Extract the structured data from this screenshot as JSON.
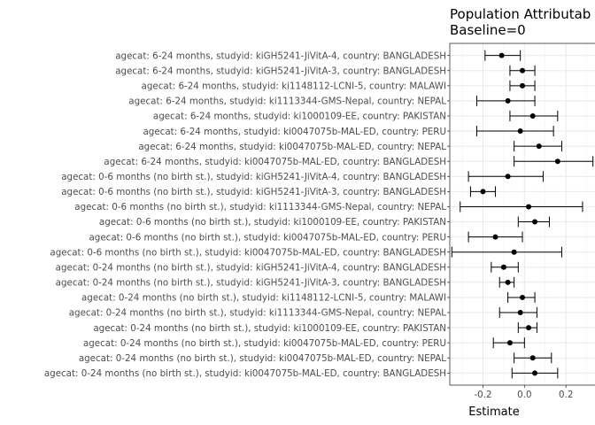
{
  "chart_data": {
    "type": "forest",
    "title": "Population Attributab",
    "subtitle": "Baseline=0",
    "xlabel": "Estimate",
    "ylabel": "",
    "xlim": [
      -0.36,
      0.34
    ],
    "x_ticks": [
      -0.2,
      0.0,
      0.2
    ],
    "x_tick_labels": [
      "-0.2",
      "0.0",
      "0.2"
    ],
    "grid": true,
    "legend": "none",
    "rows": [
      {
        "label": "agecat: 6-24 months, studyid: kiGH5241-JiVitA-4, country: BANGLADESH",
        "estimate": -0.11,
        "lower": -0.19,
        "upper": -0.02
      },
      {
        "label": "agecat: 6-24 months, studyid: kiGH5241-JiVitA-3, country: BANGLADESH",
        "estimate": -0.01,
        "lower": -0.07,
        "upper": 0.05
      },
      {
        "label": "agecat: 6-24 months, studyid: ki1148112-LCNI-5, country: MALAWI",
        "estimate": -0.01,
        "lower": -0.07,
        "upper": 0.05
      },
      {
        "label": "agecat: 6-24 months, studyid: ki1113344-GMS-Nepal, country: NEPAL",
        "estimate": -0.08,
        "lower": -0.23,
        "upper": 0.05
      },
      {
        "label": "agecat: 6-24 months, studyid: ki1000109-EE, country: PAKISTAN",
        "estimate": 0.04,
        "lower": -0.07,
        "upper": 0.16
      },
      {
        "label": "agecat: 6-24 months, studyid: ki0047075b-MAL-ED, country: PERU",
        "estimate": -0.02,
        "lower": -0.23,
        "upper": 0.14
      },
      {
        "label": "agecat: 6-24 months, studyid: ki0047075b-MAL-ED, country: NEPAL",
        "estimate": 0.07,
        "lower": -0.05,
        "upper": 0.18
      },
      {
        "label": "agecat: 6-24 months, studyid: ki0047075b-MAL-ED, country: BANGLADESH",
        "estimate": 0.16,
        "lower": -0.05,
        "upper": 0.33
      },
      {
        "label": "agecat: 0-6 months (no birth st.), studyid: kiGH5241-JiVitA-4, country: BANGLADESH",
        "estimate": -0.08,
        "lower": -0.27,
        "upper": 0.09
      },
      {
        "label": "agecat: 0-6 months (no birth st.), studyid: kiGH5241-JiVitA-3, country: BANGLADESH",
        "estimate": -0.2,
        "lower": -0.26,
        "upper": -0.14
      },
      {
        "label": "agecat: 0-6 months (no birth st.), studyid: ki1113344-GMS-Nepal, country: NEPAL",
        "estimate": 0.02,
        "lower": -0.31,
        "upper": 0.28
      },
      {
        "label": "agecat: 0-6 months (no birth st.), studyid: ki1000109-EE, country: PAKISTAN",
        "estimate": 0.05,
        "lower": -0.03,
        "upper": 0.12
      },
      {
        "label": "agecat: 0-6 months (no birth st.), studyid: ki0047075b-MAL-ED, country: PERU",
        "estimate": -0.14,
        "lower": -0.27,
        "upper": -0.01
      },
      {
        "label": "agecat: 0-6 months (no birth st.), studyid: ki0047075b-MAL-ED, country: BANGLADESH",
        "estimate": -0.05,
        "lower": -0.35,
        "upper": 0.18
      },
      {
        "label": "agecat: 0-24 months (no birth st.), studyid: kiGH5241-JiVitA-4, country: BANGLADESH",
        "estimate": -0.1,
        "lower": -0.16,
        "upper": -0.03
      },
      {
        "label": "agecat: 0-24 months (no birth st.), studyid: kiGH5241-JiVitA-3, country: BANGLADESH",
        "estimate": -0.08,
        "lower": -0.12,
        "upper": -0.05
      },
      {
        "label": "agecat: 0-24 months (no birth st.), studyid: ki1148112-LCNI-5, country: MALAWI",
        "estimate": -0.01,
        "lower": -0.08,
        "upper": 0.05
      },
      {
        "label": "agecat: 0-24 months (no birth st.), studyid: ki1113344-GMS-Nepal, country: NEPAL",
        "estimate": -0.02,
        "lower": -0.12,
        "upper": 0.06
      },
      {
        "label": "agecat: 0-24 months (no birth st.), studyid: ki1000109-EE, country: PAKISTAN",
        "estimate": 0.02,
        "lower": -0.03,
        "upper": 0.06
      },
      {
        "label": "agecat: 0-24 months (no birth st.), studyid: ki0047075b-MAL-ED, country: PERU",
        "estimate": -0.07,
        "lower": -0.15,
        "upper": 0.0
      },
      {
        "label": "agecat: 0-24 months (no birth st.), studyid: ki0047075b-MAL-ED, country: NEPAL",
        "estimate": 0.04,
        "lower": -0.05,
        "upper": 0.13
      },
      {
        "label": "agecat: 0-24 months (no birth st.), studyid: ki0047075b-MAL-ED, country: BANGLADESH",
        "estimate": 0.05,
        "lower": -0.06,
        "upper": 0.16
      }
    ]
  }
}
